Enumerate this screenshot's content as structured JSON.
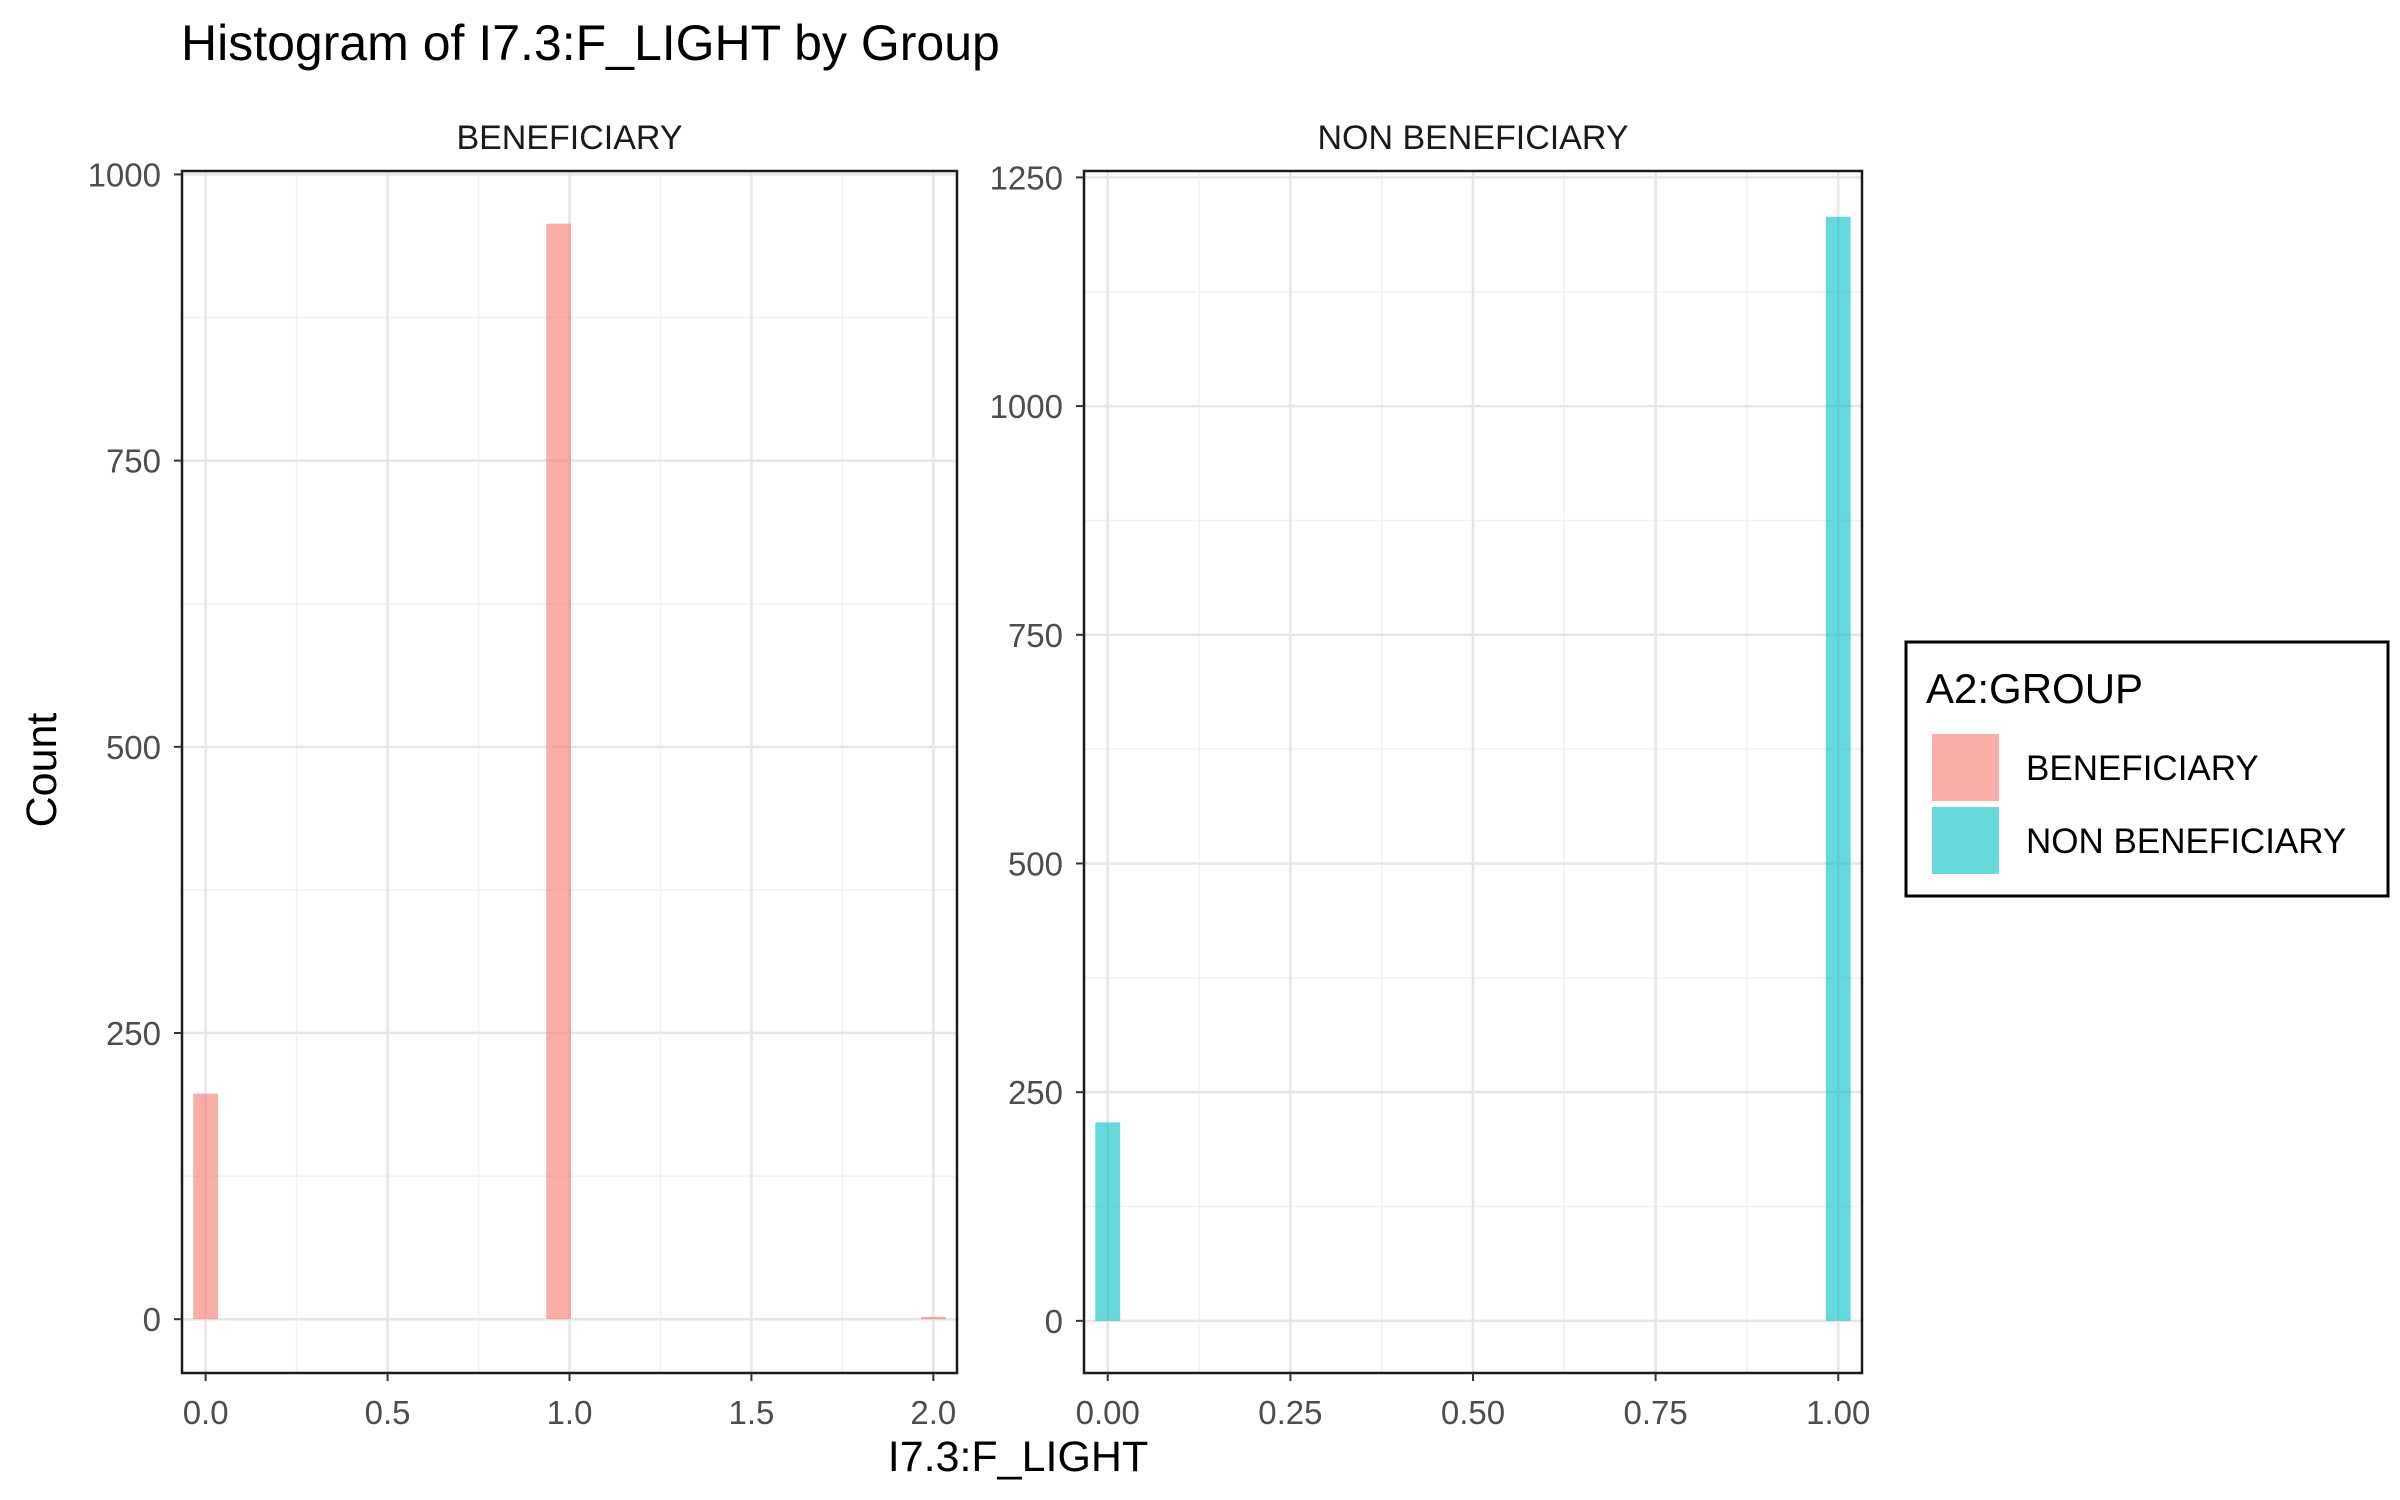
{
  "chart_data": {
    "type": "bar",
    "title": "Histogram of I7.3:F_LIGHT by Group",
    "xlabel": "I7.3:F_LIGHT",
    "ylabel": "Count",
    "grid": true,
    "legend": {
      "title": "A2:GROUP",
      "placement": "right",
      "entries": [
        {
          "name": "BENEFICIARY",
          "color": "#F8766D"
        },
        {
          "name": "NON BENEFICIARY",
          "color": "#00BFC4"
        }
      ]
    },
    "facets": [
      {
        "strip": "BENEFICIARY",
        "color": "#F8766D",
        "xlim": [
          -0.065,
          2.065
        ],
        "ylim": [
          -47,
          1003
        ],
        "x_ticks": [
          0.0,
          0.5,
          1.0,
          1.5,
          2.0
        ],
        "x_tick_labels": [
          "0.0",
          "0.5",
          "1.0",
          "1.5",
          "2.0"
        ],
        "y_ticks": [
          0,
          250,
          500,
          750,
          1000
        ],
        "y_tick_labels": [
          "0",
          "250",
          "500",
          "750",
          "1000"
        ],
        "bin_width": 0.068,
        "bins": [
          {
            "x": 0.0,
            "count": 197
          },
          {
            "x": 0.97,
            "count": 957
          },
          {
            "x": 2.0,
            "count": 2
          }
        ]
      },
      {
        "strip": "NON BENEFICIARY",
        "color": "#00BFC4",
        "xlim": [
          -0.0325,
          1.0325
        ],
        "ylim": [
          -57,
          1257
        ],
        "x_ticks": [
          0.0,
          0.25,
          0.5,
          0.75,
          1.0
        ],
        "x_tick_labels": [
          "0.00",
          "0.25",
          "0.50",
          "0.75",
          "1.00"
        ],
        "y_ticks": [
          0,
          250,
          500,
          750,
          1000,
          1250
        ],
        "y_tick_labels": [
          "0",
          "250",
          "500",
          "750",
          "1000",
          "1250"
        ],
        "bin_width": 0.034,
        "bins": [
          {
            "x": 0.0,
            "count": 217
          },
          {
            "x": 1.0,
            "count": 1207
          }
        ]
      }
    ]
  }
}
